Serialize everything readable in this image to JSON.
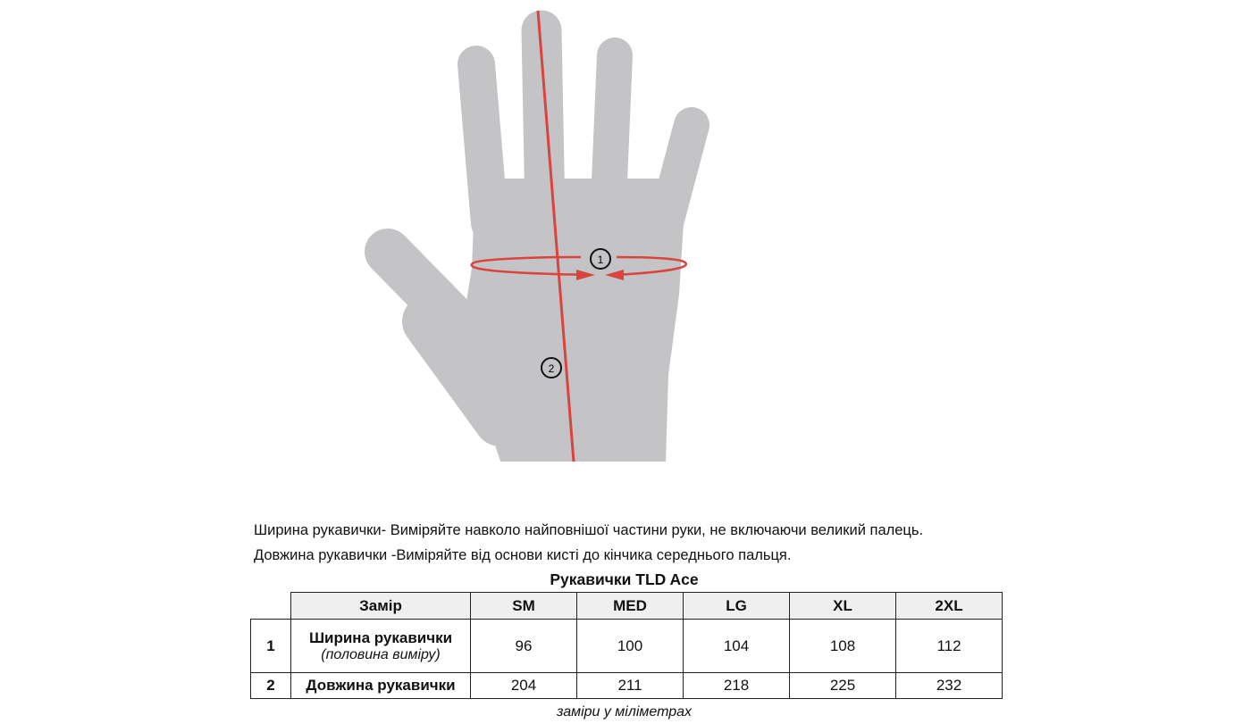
{
  "diagram": {
    "markers": [
      "1",
      "2"
    ],
    "colors": {
      "hand": "#c4c4c6",
      "measure_line": "#d9443f",
      "marker": "#111111"
    }
  },
  "instructions": [
    "Ширина рукавички- Виміряйте навколо найповнішої частини руки, не включаючи великий палець.",
    "Довжина рукавички -Виміряйте від основи кисті до кінчика середнього пальця."
  ],
  "table": {
    "title": "Рукавички TLD Ace",
    "header": [
      "Замір",
      "SM",
      "MED",
      "LG",
      "XL",
      "2XL"
    ],
    "rows": [
      {
        "num": "1",
        "name": "Ширина рукавички",
        "sub": "(половина виміру)",
        "values": [
          "96",
          "100",
          "104",
          "108",
          "112"
        ]
      },
      {
        "num": "2",
        "name": "Довжина рукавички",
        "values": [
          "204",
          "211",
          "218",
          "225",
          "232"
        ]
      }
    ],
    "note": "заміри у міліметрах"
  }
}
